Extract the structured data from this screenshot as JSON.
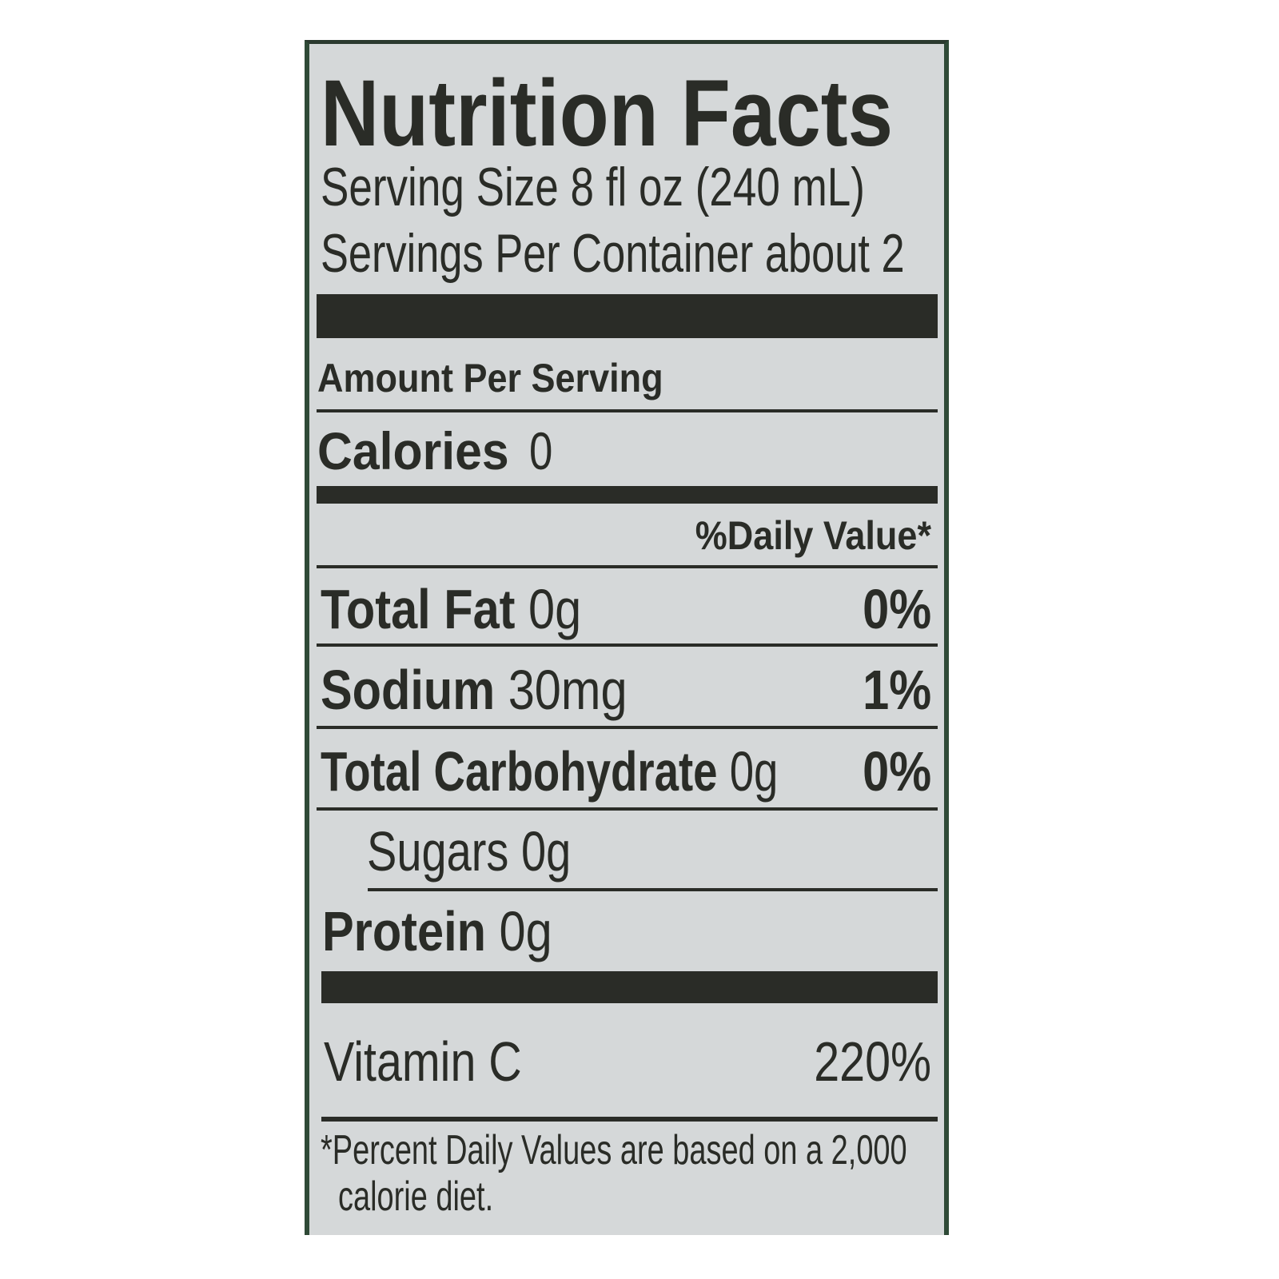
{
  "label": {
    "title": "Nutrition Facts",
    "serving_size": "Serving Size 8 fl oz (240 mL)",
    "servings_per_container": "Servings Per Container about 2",
    "amount_per_serving": "Amount Per Serving",
    "calories_label": "Calories",
    "calories_value": "0",
    "daily_value_header": "%Daily Value*",
    "nutrients": [
      {
        "name": "Total Fat",
        "amount": "0g",
        "dv": "0%"
      },
      {
        "name": "Sodium",
        "amount": "30mg",
        "dv": "1%"
      },
      {
        "name": "Total Carbohydrate",
        "amount": "0g",
        "dv": "0%"
      },
      {
        "name": "Sugars",
        "amount": "0g",
        "dv": ""
      },
      {
        "name": "Protein",
        "amount": "0g",
        "dv": ""
      }
    ],
    "vitamin": {
      "name": "Vitamin C",
      "dv": "220%"
    },
    "footnote_line1": "*Percent Daily Values are based on a 2,000",
    "footnote_line2": "calorie diet.",
    "colors": {
      "background": "#d5d8d9",
      "text": "#2a2c27",
      "border": "#2f4a37"
    }
  }
}
